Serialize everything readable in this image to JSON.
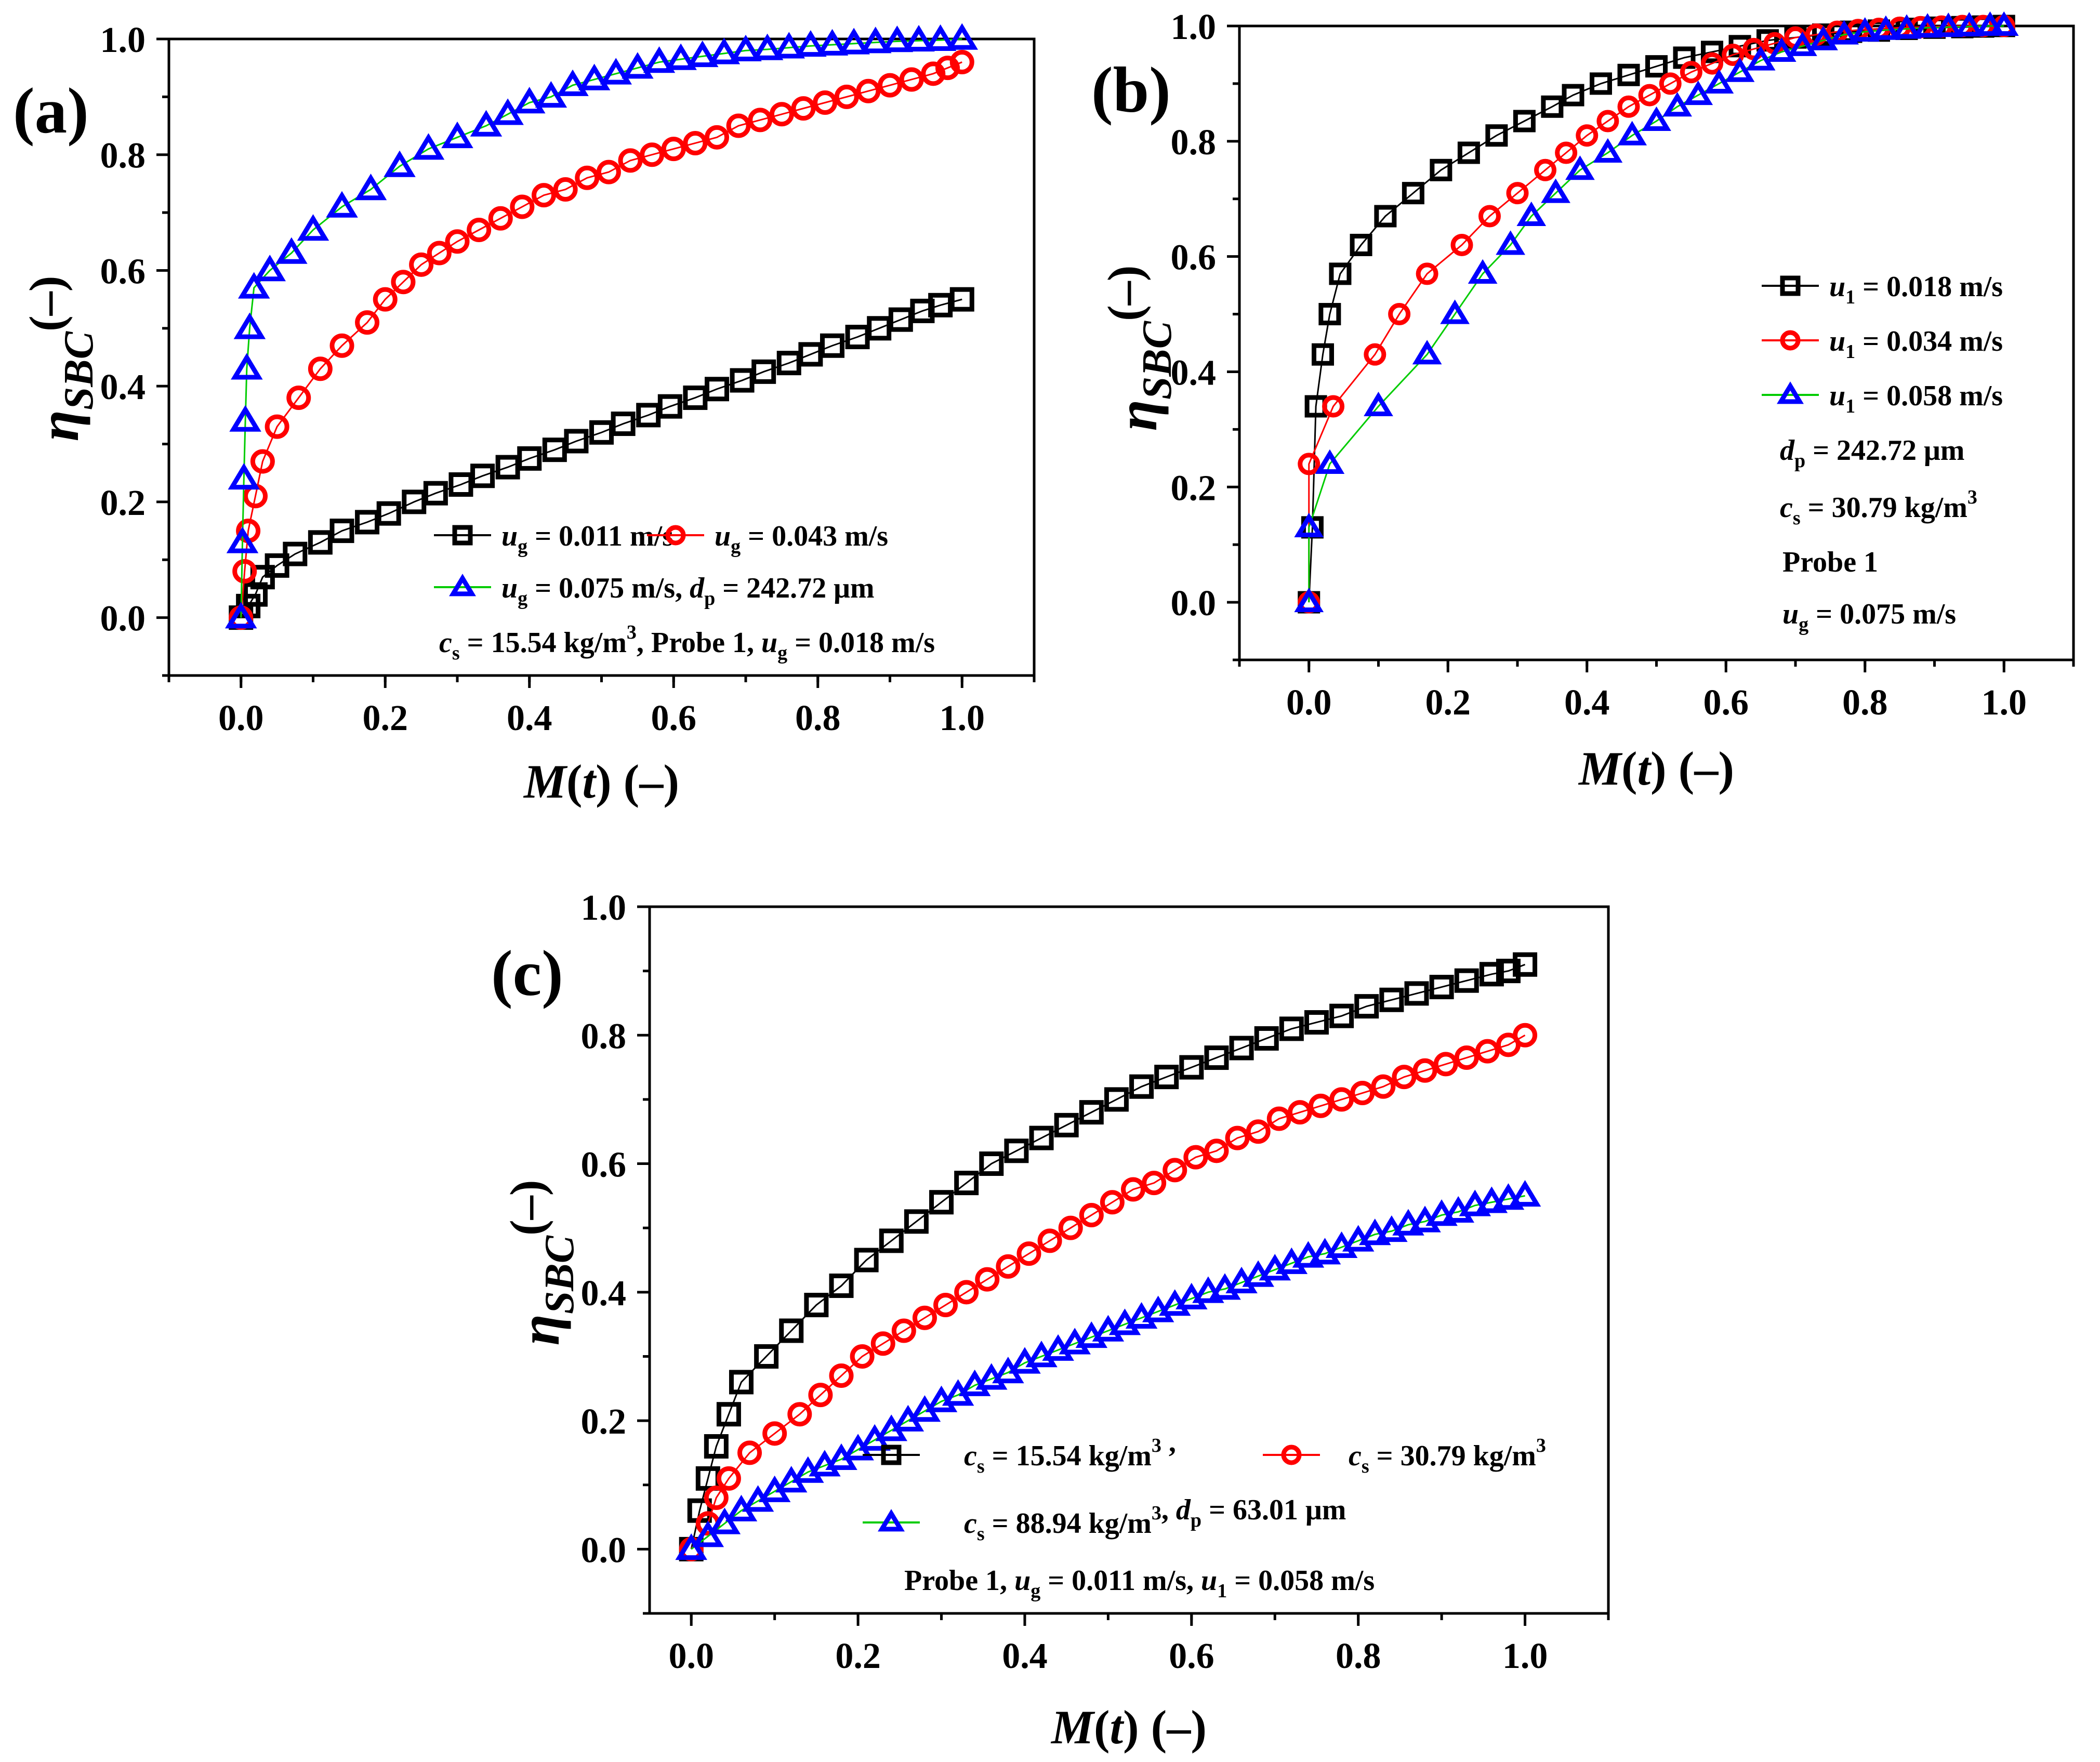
{
  "chart_data": [
    {
      "type": "line",
      "panel_label": "(a)",
      "xlabel": "M(t) (–)",
      "ylabel": "ηSBC (–)",
      "xlim": [
        -0.1,
        1.1
      ],
      "ylim": [
        -0.1,
        1.0
      ],
      "xticks": [
        "0.0",
        "0.2",
        "0.4",
        "0.6",
        "0.8",
        "1.0"
      ],
      "yticks": [
        "0.0",
        "0.2",
        "0.4",
        "0.6",
        "0.8",
        "1.0"
      ],
      "series": [
        {
          "name": "ug = 0.011 m/s",
          "color": "#000000",
          "marker": "square",
          "line": "#000000",
          "x": [
            0.0,
            0.01,
            0.02,
            0.03,
            0.05,
            0.075,
            0.11,
            0.14,
            0.175,
            0.205,
            0.24,
            0.27,
            0.305,
            0.335,
            0.37,
            0.4,
            0.435,
            0.465,
            0.5,
            0.53,
            0.565,
            0.595,
            0.63,
            0.66,
            0.695,
            0.725,
            0.76,
            0.79,
            0.82,
            0.855,
            0.885,
            0.915,
            0.945,
            0.97,
            1.0
          ],
          "y": [
            0.0,
            0.02,
            0.04,
            0.07,
            0.09,
            0.11,
            0.13,
            0.15,
            0.165,
            0.18,
            0.2,
            0.215,
            0.23,
            0.245,
            0.26,
            0.275,
            0.29,
            0.305,
            0.32,
            0.335,
            0.35,
            0.365,
            0.38,
            0.395,
            0.41,
            0.425,
            0.44,
            0.455,
            0.47,
            0.485,
            0.5,
            0.515,
            0.53,
            0.54,
            0.55
          ]
        },
        {
          "name": "ug = 0.043 m/s",
          "color": "#ff0000",
          "marker": "circle",
          "line": "#ff0000",
          "x": [
            0.0,
            0.005,
            0.01,
            0.02,
            0.03,
            0.05,
            0.08,
            0.11,
            0.14,
            0.175,
            0.2,
            0.225,
            0.25,
            0.275,
            0.3,
            0.33,
            0.36,
            0.39,
            0.42,
            0.45,
            0.48,
            0.51,
            0.54,
            0.57,
            0.6,
            0.63,
            0.66,
            0.69,
            0.72,
            0.75,
            0.78,
            0.81,
            0.84,
            0.87,
            0.9,
            0.93,
            0.96,
            0.98,
            1.0
          ],
          "y": [
            0.0,
            0.08,
            0.15,
            0.21,
            0.27,
            0.33,
            0.38,
            0.43,
            0.47,
            0.51,
            0.55,
            0.58,
            0.61,
            0.63,
            0.65,
            0.67,
            0.69,
            0.71,
            0.73,
            0.74,
            0.76,
            0.77,
            0.79,
            0.8,
            0.81,
            0.82,
            0.83,
            0.85,
            0.86,
            0.87,
            0.88,
            0.89,
            0.9,
            0.91,
            0.92,
            0.93,
            0.94,
            0.95,
            0.96
          ]
        },
        {
          "name": "ug = 0.075 m/s, dp = 242.72 μm",
          "color": "#0000ff",
          "marker": "triangle",
          "line": "#00cc00",
          "x": [
            0.0,
            0.002,
            0.004,
            0.006,
            0.008,
            0.012,
            0.018,
            0.04,
            0.07,
            0.1,
            0.14,
            0.18,
            0.22,
            0.26,
            0.3,
            0.34,
            0.37,
            0.4,
            0.43,
            0.46,
            0.49,
            0.52,
            0.55,
            0.58,
            0.61,
            0.64,
            0.67,
            0.7,
            0.73,
            0.76,
            0.79,
            0.82,
            0.85,
            0.88,
            0.91,
            0.94,
            0.97,
            1.0
          ],
          "y": [
            0.0,
            0.13,
            0.24,
            0.34,
            0.43,
            0.5,
            0.57,
            0.6,
            0.63,
            0.67,
            0.71,
            0.74,
            0.78,
            0.81,
            0.83,
            0.85,
            0.87,
            0.89,
            0.9,
            0.92,
            0.93,
            0.94,
            0.95,
            0.96,
            0.965,
            0.97,
            0.975,
            0.98,
            0.982,
            0.985,
            0.988,
            0.99,
            0.992,
            0.994,
            0.996,
            0.997,
            0.998,
            1.0
          ]
        }
      ],
      "legend": [
        {
          "pre": "u",
          "sub": "g",
          "post": " = 0.011 m/s"
        },
        {
          "pre": "u",
          "sub": "g",
          "post": " = 0.043 m/s"
        },
        {
          "pre": "u",
          "sub": "g",
          "post": " = 0.075 m/s, ",
          "pre2": "d",
          "sub2": "p",
          "post2": " = 242.72 μm"
        }
      ],
      "note": "cs = 15.54 kg/m3, Probe 1, ug = 0.018 m/s"
    },
    {
      "type": "line",
      "panel_label": "(b)",
      "xlabel": "M(t) (–)",
      "ylabel": "ηSBC (–)",
      "xlim": [
        -0.1,
        1.1
      ],
      "ylim": [
        -0.1,
        1.0
      ],
      "xticks": [
        "0.0",
        "0.2",
        "0.4",
        "0.6",
        "0.8",
        "1.0"
      ],
      "yticks": [
        "0.0",
        "0.2",
        "0.4",
        "0.6",
        "0.8",
        "1.0"
      ],
      "series": [
        {
          "name": "u1 = 0.018 m/s",
          "color": "#000000",
          "marker": "square",
          "line": "#000000",
          "x": [
            0.0,
            0.005,
            0.01,
            0.02,
            0.03,
            0.045,
            0.075,
            0.11,
            0.15,
            0.19,
            0.23,
            0.27,
            0.31,
            0.35,
            0.38,
            0.42,
            0.46,
            0.5,
            0.54,
            0.58,
            0.62,
            0.66,
            0.7,
            0.74,
            0.78,
            0.82,
            0.86,
            0.9,
            0.94,
            0.97,
            1.0
          ],
          "y": [
            0.0,
            0.13,
            0.34,
            0.43,
            0.5,
            0.57,
            0.62,
            0.67,
            0.71,
            0.75,
            0.78,
            0.81,
            0.835,
            0.86,
            0.88,
            0.9,
            0.915,
            0.93,
            0.945,
            0.955,
            0.965,
            0.975,
            0.98,
            0.985,
            0.99,
            0.992,
            0.995,
            0.997,
            0.998,
            0.999,
            1.0
          ]
        },
        {
          "name": "u1 = 0.034 m/s",
          "color": "#ff0000",
          "marker": "circle",
          "line": "#ff0000",
          "x": [
            0.0,
            0.0,
            0.035,
            0.095,
            0.13,
            0.17,
            0.22,
            0.26,
            0.3,
            0.34,
            0.37,
            0.4,
            0.43,
            0.46,
            0.49,
            0.52,
            0.55,
            0.58,
            0.61,
            0.64,
            0.67,
            0.7,
            0.73,
            0.76,
            0.79,
            0.82,
            0.85,
            0.88,
            0.91,
            0.94,
            0.97,
            1.0
          ],
          "y": [
            0.0,
            0.24,
            0.34,
            0.43,
            0.5,
            0.57,
            0.62,
            0.67,
            0.71,
            0.75,
            0.78,
            0.81,
            0.835,
            0.86,
            0.88,
            0.9,
            0.92,
            0.935,
            0.95,
            0.96,
            0.97,
            0.98,
            0.985,
            0.99,
            0.993,
            0.995,
            0.997,
            0.998,
            0.999,
            1.0,
            1.0,
            1.0
          ]
        },
        {
          "name": "u1 = 0.058 m/s",
          "color": "#0000ff",
          "marker": "triangle",
          "line": "#00cc00",
          "x": [
            0.0,
            0.0,
            0.03,
            0.1,
            0.17,
            0.21,
            0.25,
            0.29,
            0.32,
            0.355,
            0.39,
            0.43,
            0.465,
            0.5,
            0.53,
            0.56,
            0.59,
            0.62,
            0.65,
            0.68,
            0.71,
            0.74,
            0.77,
            0.8,
            0.83,
            0.86,
            0.89,
            0.92,
            0.95,
            0.98,
            1.0
          ],
          "y": [
            0.0,
            0.13,
            0.24,
            0.34,
            0.43,
            0.5,
            0.57,
            0.62,
            0.67,
            0.71,
            0.75,
            0.78,
            0.81,
            0.835,
            0.86,
            0.88,
            0.9,
            0.92,
            0.94,
            0.955,
            0.965,
            0.975,
            0.985,
            0.99,
            0.993,
            0.995,
            0.997,
            0.998,
            0.999,
            1.0,
            1.0
          ]
        }
      ],
      "legend": [
        {
          "pre": "u",
          "sub": "1",
          "post": " = 0.018 m/s"
        },
        {
          "pre": "u",
          "sub": "1",
          "post": " = 0.034 m/s"
        },
        {
          "pre": "u",
          "sub": "1",
          "post": " = 0.058 m/s"
        }
      ],
      "notes": [
        "dp = 242.72 μm",
        "cs = 30.79 kg/m3",
        "Probe 1",
        "ug = 0.075 m/s"
      ]
    },
    {
      "type": "line",
      "panel_label": "(c)",
      "xlabel": "M(t) (–)",
      "ylabel": "ηSBC (–)",
      "xlim": [
        -0.05,
        1.1
      ],
      "ylim": [
        -0.1,
        1.0
      ],
      "xticks": [
        "0.0",
        "0.2",
        "0.4",
        "0.6",
        "0.8",
        "1.0"
      ],
      "yticks": [
        "0.0",
        "0.2",
        "0.4",
        "0.6",
        "0.8",
        "1.0"
      ],
      "series": [
        {
          "name": "cs = 15.54 kg/m3",
          "color": "#000000",
          "marker": "square",
          "line": "#000000",
          "x": [
            0.0,
            0.01,
            0.02,
            0.03,
            0.045,
            0.06,
            0.09,
            0.12,
            0.15,
            0.18,
            0.21,
            0.24,
            0.27,
            0.3,
            0.33,
            0.36,
            0.39,
            0.42,
            0.45,
            0.48,
            0.51,
            0.54,
            0.57,
            0.6,
            0.63,
            0.66,
            0.69,
            0.72,
            0.75,
            0.78,
            0.81,
            0.84,
            0.87,
            0.9,
            0.93,
            0.96,
            0.98,
            1.0
          ],
          "y": [
            0.0,
            0.06,
            0.11,
            0.16,
            0.21,
            0.26,
            0.3,
            0.34,
            0.38,
            0.41,
            0.45,
            0.48,
            0.51,
            0.54,
            0.57,
            0.6,
            0.62,
            0.64,
            0.66,
            0.68,
            0.7,
            0.72,
            0.735,
            0.75,
            0.765,
            0.78,
            0.795,
            0.81,
            0.82,
            0.83,
            0.845,
            0.855,
            0.865,
            0.875,
            0.885,
            0.895,
            0.9,
            0.91
          ]
        },
        {
          "name": "cs = 30.79 kg/m3",
          "color": "#ff0000",
          "marker": "circle",
          "line": "#ff0000",
          "x": [
            0.0,
            0.02,
            0.03,
            0.045,
            0.07,
            0.1,
            0.13,
            0.155,
            0.18,
            0.205,
            0.23,
            0.255,
            0.28,
            0.305,
            0.33,
            0.355,
            0.38,
            0.405,
            0.43,
            0.455,
            0.48,
            0.505,
            0.53,
            0.555,
            0.58,
            0.605,
            0.63,
            0.655,
            0.68,
            0.705,
            0.73,
            0.755,
            0.78,
            0.805,
            0.83,
            0.855,
            0.88,
            0.905,
            0.93,
            0.955,
            0.98,
            1.0
          ],
          "y": [
            0.0,
            0.04,
            0.08,
            0.11,
            0.15,
            0.18,
            0.21,
            0.24,
            0.27,
            0.3,
            0.32,
            0.34,
            0.36,
            0.38,
            0.4,
            0.42,
            0.44,
            0.46,
            0.48,
            0.5,
            0.52,
            0.54,
            0.56,
            0.57,
            0.59,
            0.61,
            0.62,
            0.64,
            0.65,
            0.67,
            0.68,
            0.69,
            0.7,
            0.71,
            0.72,
            0.735,
            0.745,
            0.755,
            0.765,
            0.775,
            0.785,
            0.8
          ]
        },
        {
          "name": "cs = 88.94 kg/m3, dp = 63.01 μm",
          "color": "#0000ff",
          "marker": "triangle",
          "line": "#00cc00",
          "x": [
            0.0,
            0.02,
            0.04,
            0.06,
            0.08,
            0.1,
            0.12,
            0.14,
            0.16,
            0.18,
            0.2,
            0.22,
            0.24,
            0.26,
            0.28,
            0.3,
            0.32,
            0.34,
            0.36,
            0.38,
            0.4,
            0.42,
            0.44,
            0.46,
            0.48,
            0.5,
            0.52,
            0.54,
            0.56,
            0.58,
            0.6,
            0.62,
            0.64,
            0.66,
            0.68,
            0.7,
            0.72,
            0.74,
            0.76,
            0.78,
            0.8,
            0.82,
            0.84,
            0.86,
            0.88,
            0.9,
            0.92,
            0.94,
            0.96,
            0.98,
            1.0
          ],
          "y": [
            0.0,
            0.02,
            0.04,
            0.06,
            0.075,
            0.09,
            0.105,
            0.12,
            0.13,
            0.14,
            0.155,
            0.17,
            0.185,
            0.2,
            0.215,
            0.23,
            0.24,
            0.255,
            0.265,
            0.275,
            0.29,
            0.3,
            0.31,
            0.32,
            0.33,
            0.34,
            0.35,
            0.36,
            0.37,
            0.38,
            0.39,
            0.4,
            0.405,
            0.415,
            0.425,
            0.435,
            0.445,
            0.455,
            0.46,
            0.47,
            0.48,
            0.49,
            0.495,
            0.505,
            0.51,
            0.52,
            0.525,
            0.535,
            0.54,
            0.545,
            0.55
          ]
        }
      ],
      "legend": [
        {
          "pre": "c",
          "sub": "s",
          "post": " = 15.54 kg/m",
          "sup": "3",
          "tail": " ,"
        },
        {
          "pre": "c",
          "sub": "s",
          "post": " = 30.79 kg/m",
          "sup": "3"
        },
        {
          "pre": "c",
          "sub": "s",
          "post": " = 88.94 kg/m",
          "sup": "3",
          "tail": ", ",
          "pre2": "d",
          "sub2": "p",
          "post2": " = 63.01 μm"
        }
      ],
      "note": "Probe 1, ug = 0.011 m/s, u1 = 0.058 m/s"
    }
  ]
}
